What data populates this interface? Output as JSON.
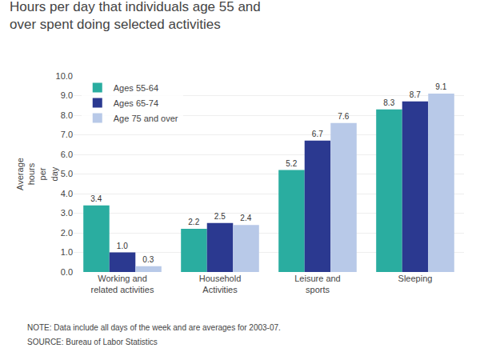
{
  "chart_data": {
    "type": "bar",
    "title": "Hours per day that individuals age 55 and\nover spent doing selected activities",
    "ylabel": "Average\nhours\nper\nday",
    "categories": [
      "Working and\nrelated activities",
      "Household\nActivities",
      "Leisure and\nsports",
      "Sleeping"
    ],
    "series": [
      {
        "name": "Ages 55-64",
        "color": "#2aada0",
        "values": [
          3.4,
          2.2,
          5.2,
          8.3
        ],
        "value_labels": [
          "3.4",
          "2.2",
          "5.2",
          "8.3"
        ]
      },
      {
        "name": "Ages 65-74",
        "color": "#2b3990",
        "values": [
          1.0,
          2.5,
          6.7,
          8.7
        ],
        "value_labels": [
          "1.0",
          "2.5",
          "6.7",
          "8.7"
        ]
      },
      {
        "name": "Age 75 and over",
        "color": "#b8c9e8",
        "values": [
          0.3,
          2.4,
          7.6,
          9.1
        ],
        "value_labels": [
          "0.3",
          "2.4",
          "7.6",
          "9.1"
        ]
      }
    ],
    "ylim": [
      0,
      10.0
    ],
    "yticks": [
      {
        "value": 0,
        "label": "0.0"
      },
      {
        "value": 1,
        "label": "1.0"
      },
      {
        "value": 2,
        "label": "2.0"
      },
      {
        "value": 3,
        "label": "3.0"
      },
      {
        "value": 4,
        "label": "4.0"
      },
      {
        "value": 5,
        "label": "5.0"
      },
      {
        "value": 6,
        "label": "6.0"
      },
      {
        "value": 7,
        "label": "7.0"
      },
      {
        "value": 8,
        "label": "8.0"
      },
      {
        "value": 9,
        "label": "9.0"
      },
      {
        "value": 10,
        "label": "10.0"
      }
    ],
    "annotations": [
      "NOTE: Data include all days of the week and are averages for 2003-07.",
      "SOURCE: Bureau of Labor Statistics"
    ],
    "grid": true,
    "legend": "upper left",
    "data_labels": true
  }
}
